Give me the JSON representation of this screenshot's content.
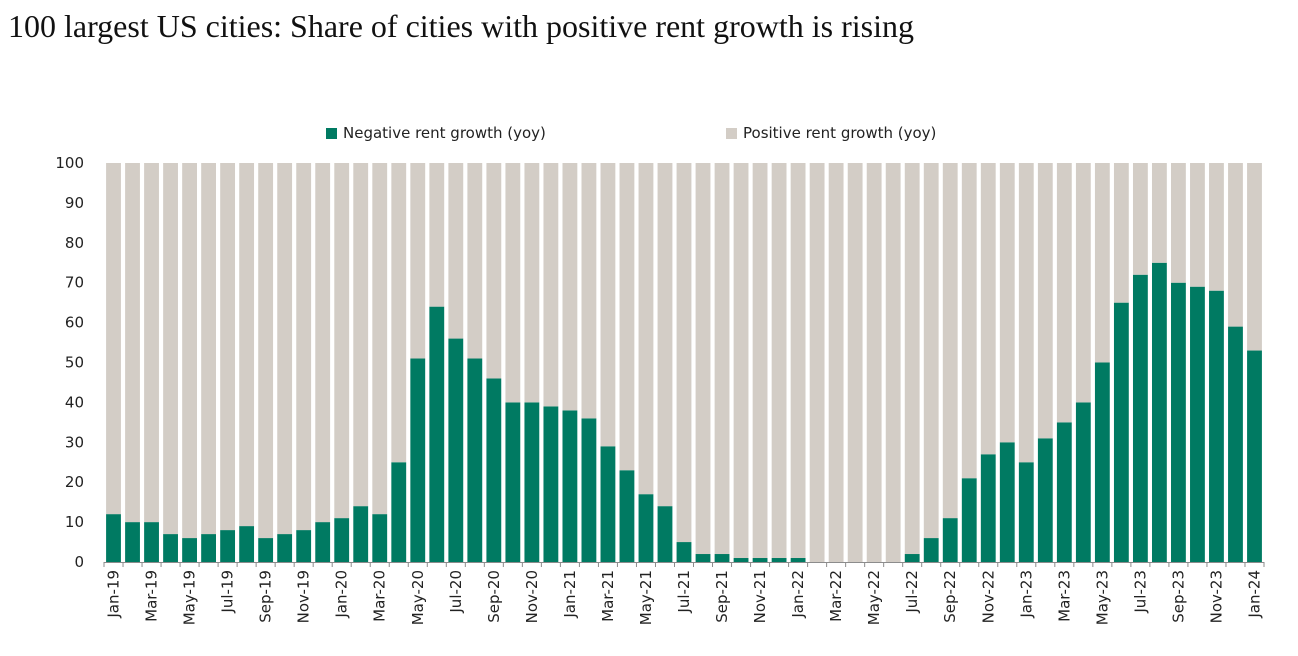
{
  "title": "100 largest US cities: Share of cities with positive rent growth is rising",
  "legend": [
    {
      "label": "Negative rent growth (yoy)",
      "color": "#007a62"
    },
    {
      "label": "Positive rent growth (yoy)",
      "color": "#d3cdc6"
    }
  ],
  "chart_data": {
    "type": "bar",
    "stacked": true,
    "title": "100 largest US cities: Share of cities with positive rent growth is rising",
    "xlabel": "",
    "ylabel": "",
    "ylim": [
      0,
      100
    ],
    "yticks": [
      0,
      10,
      20,
      30,
      40,
      50,
      60,
      70,
      80,
      90,
      100
    ],
    "grid": false,
    "legend_position": "top",
    "categories": [
      "Jan-19",
      "Feb-19",
      "Mar-19",
      "Apr-19",
      "May-19",
      "Jun-19",
      "Jul-19",
      "Aug-19",
      "Sep-19",
      "Oct-19",
      "Nov-19",
      "Dec-19",
      "Jan-20",
      "Feb-20",
      "Mar-20",
      "Apr-20",
      "May-20",
      "Jun-20",
      "Jul-20",
      "Aug-20",
      "Sep-20",
      "Oct-20",
      "Nov-20",
      "Dec-20",
      "Jan-21",
      "Feb-21",
      "Mar-21",
      "Apr-21",
      "May-21",
      "Jun-21",
      "Jul-21",
      "Aug-21",
      "Sep-21",
      "Oct-21",
      "Nov-21",
      "Dec-21",
      "Jan-22",
      "Feb-22",
      "Mar-22",
      "Apr-22",
      "May-22",
      "Jun-22",
      "Jul-22",
      "Aug-22",
      "Sep-22",
      "Oct-22",
      "Nov-22",
      "Dec-22",
      "Jan-23",
      "Feb-23",
      "Mar-23",
      "Apr-23",
      "May-23",
      "Jun-23",
      "Jul-23",
      "Aug-23",
      "Sep-23",
      "Oct-23",
      "Nov-23",
      "Dec-23",
      "Jan-24"
    ],
    "tick_labels_shown": [
      "Jan-19",
      "Mar-19",
      "May-19",
      "Jul-19",
      "Sep-19",
      "Nov-19",
      "Jan-20",
      "Mar-20",
      "May-20",
      "Jul-20",
      "Sep-20",
      "Nov-20",
      "Jan-21",
      "Mar-21",
      "May-21",
      "Jul-21",
      "Sep-21",
      "Nov-21",
      "Jan-22",
      "Mar-22",
      "May-22",
      "Jul-22",
      "Sep-22",
      "Nov-22",
      "Jan-23",
      "Mar-23",
      "May-23",
      "Jul-23",
      "Sep-23",
      "Nov-23",
      "Jan-24"
    ],
    "series": [
      {
        "name": "Negative rent growth (yoy)",
        "color": "#007a62",
        "values": [
          12,
          10,
          10,
          7,
          6,
          7,
          8,
          9,
          6,
          7,
          8,
          10,
          11,
          14,
          12,
          25,
          51,
          64,
          56,
          51,
          46,
          40,
          40,
          39,
          38,
          36,
          29,
          23,
          17,
          14,
          5,
          2,
          2,
          1,
          1,
          1,
          1,
          0,
          0,
          0,
          0,
          0,
          2,
          6,
          11,
          21,
          27,
          30,
          25,
          31,
          35,
          40,
          50,
          65,
          72,
          75,
          70,
          69,
          68,
          59,
          53
        ]
      },
      {
        "name": "Positive rent growth (yoy)",
        "color": "#d3cdc6",
        "values": [
          88,
          90,
          90,
          93,
          94,
          93,
          92,
          91,
          94,
          93,
          92,
          90,
          89,
          86,
          88,
          75,
          49,
          36,
          44,
          49,
          54,
          60,
          60,
          61,
          62,
          64,
          71,
          77,
          83,
          86,
          95,
          98,
          98,
          99,
          99,
          99,
          99,
          100,
          100,
          100,
          100,
          100,
          98,
          94,
          89,
          79,
          73,
          70,
          75,
          69,
          65,
          60,
          50,
          35,
          28,
          25,
          30,
          31,
          32,
          41,
          47
        ]
      }
    ]
  }
}
